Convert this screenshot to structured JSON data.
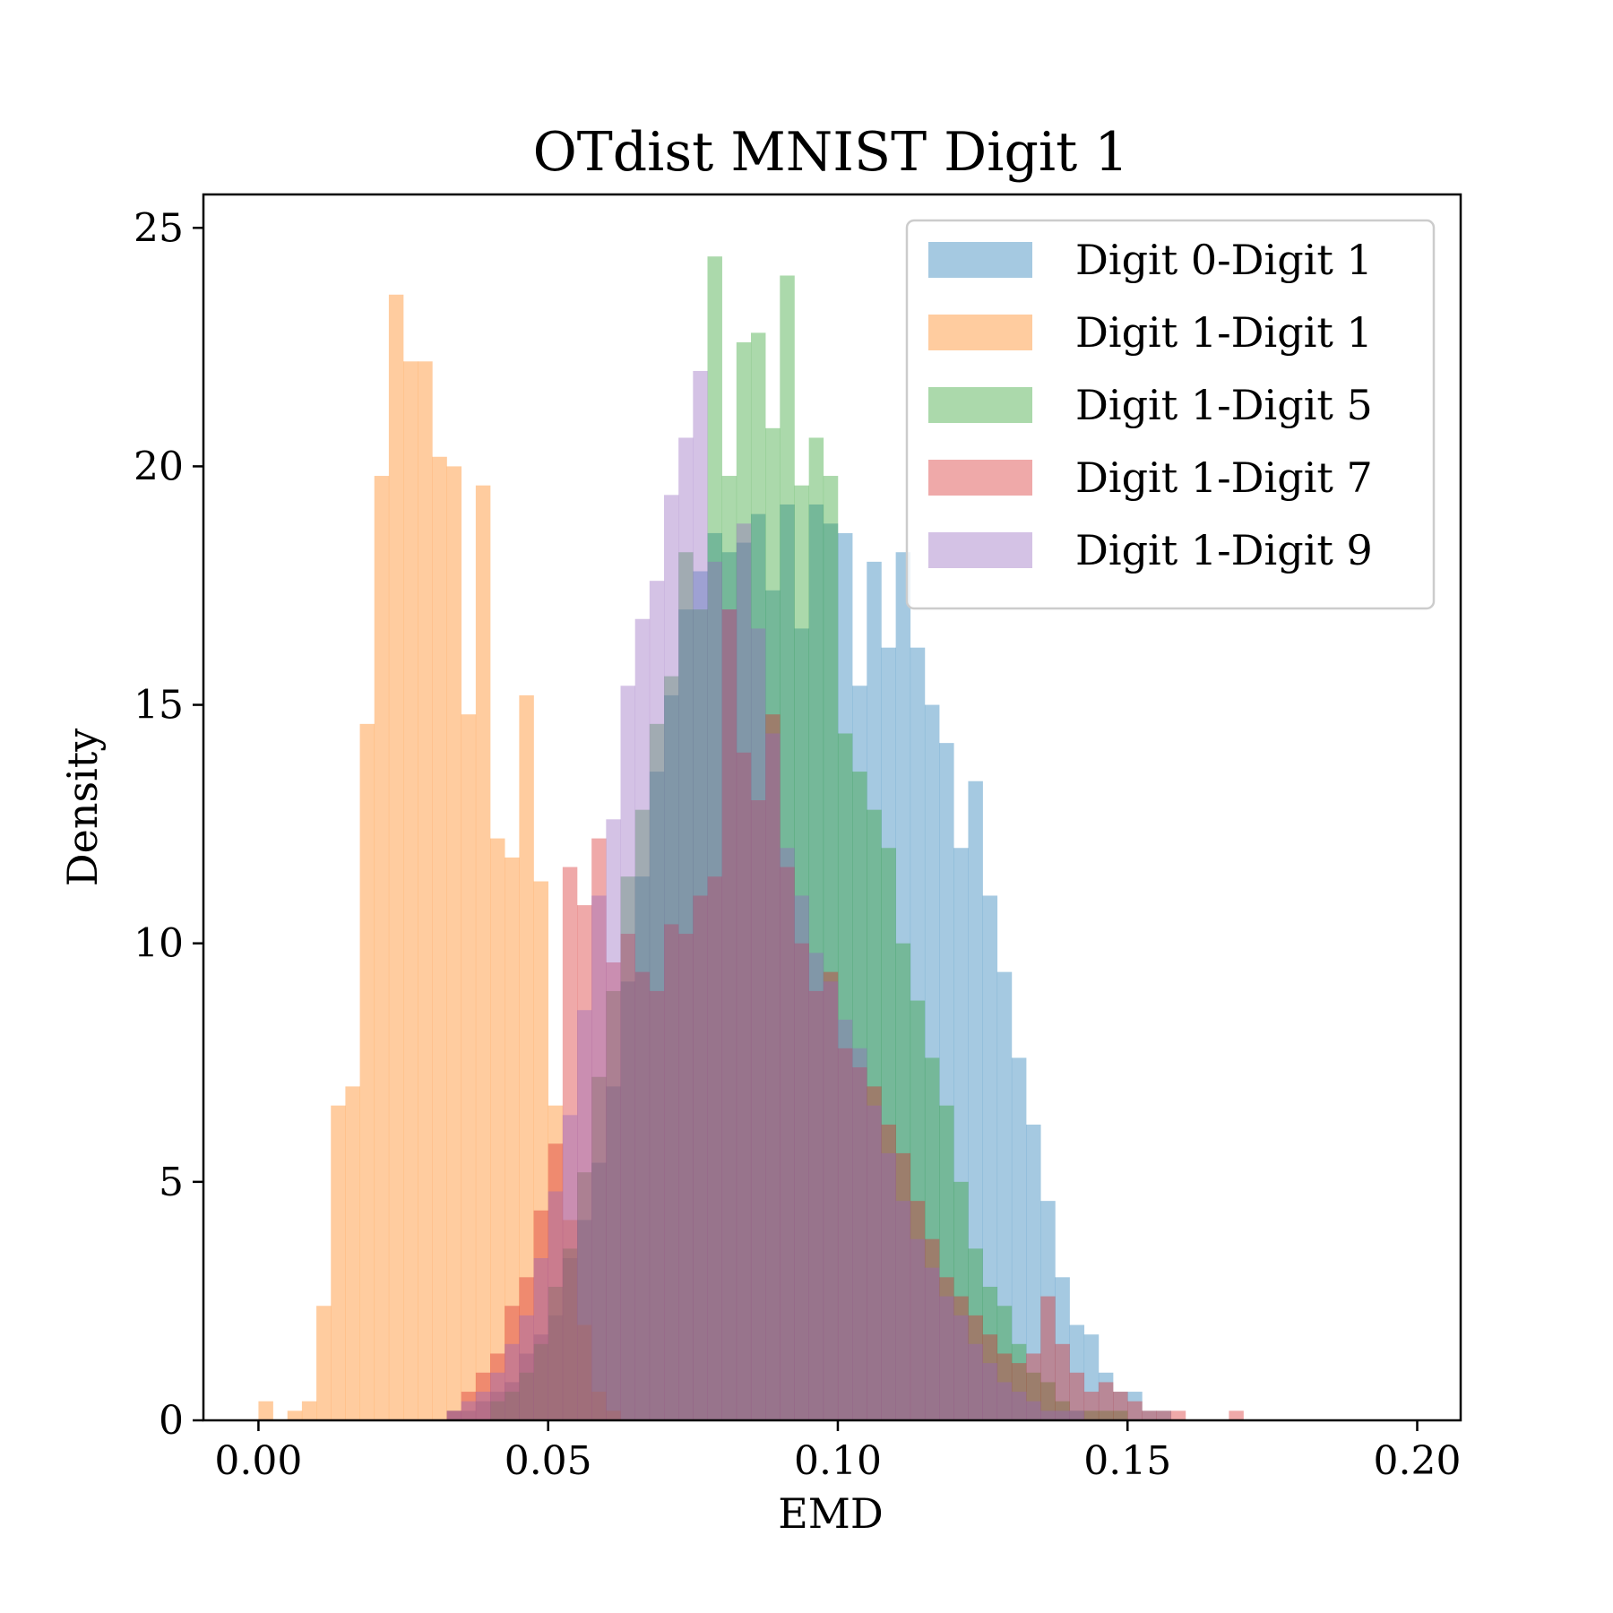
{
  "chart_data": {
    "type": "histogram",
    "title": "OTdist MNIST Digit 1",
    "xlabel": "EMD",
    "ylabel": "Density",
    "xlim": [
      -0.0095,
      0.2075
    ],
    "ylim": [
      0,
      25.7
    ],
    "x_ticks": [
      0.0,
      0.05,
      0.1,
      0.15,
      0.2
    ],
    "x_tick_labels": [
      "0.00",
      "0.05",
      "0.10",
      "0.15",
      "0.20"
    ],
    "y_ticks": [
      0,
      5,
      10,
      15,
      20,
      25
    ],
    "y_tick_labels": [
      "0",
      "5",
      "10",
      "15",
      "20",
      "25"
    ],
    "legend_position": "top-right",
    "opacity": 0.4,
    "bin_width": 0.0025,
    "series": [
      {
        "name": "Digit 0-Digit 1",
        "color": "#1f77b4",
        "bin_start": 0.0325,
        "values": [
          0.2,
          0.2,
          0.4,
          0.6,
          0.8,
          1.4,
          1.8,
          2.2,
          3.4,
          4.2,
          5.4,
          7.0,
          9.2,
          11.4,
          13.6,
          15.2,
          17.0,
          17.8,
          18.6,
          18.2,
          18.4,
          19.0,
          17.4,
          19.2,
          16.6,
          19.2,
          18.8,
          18.6,
          15.4,
          18.0,
          16.2,
          18.2,
          16.2,
          15.0,
          14.2,
          12.0,
          13.4,
          11.0,
          9.4,
          7.6,
          6.2,
          4.6,
          3.0,
          2.0,
          1.8,
          1.0,
          0.6,
          0.6,
          0.2,
          0.2
        ]
      },
      {
        "name": "Digit 1-Digit 1",
        "color": "#ff7f0e",
        "bin_start": 0.0,
        "values": [
          0.4,
          0.0,
          0.2,
          0.4,
          2.4,
          6.6,
          7.0,
          14.6,
          19.8,
          23.6,
          22.2,
          22.2,
          20.2,
          20.0,
          14.8,
          19.6,
          12.2,
          11.8,
          15.2,
          11.3,
          6.6,
          4.2,
          2.0,
          0.6,
          0.2
        ]
      },
      {
        "name": "Digit 1-Digit 5",
        "color": "#2ca02c",
        "bin_start": 0.04,
        "values": [
          0.4,
          0.6,
          1.0,
          1.6,
          2.8,
          3.6,
          5.2,
          7.2,
          9.0,
          11.4,
          12.8,
          14.6,
          15.6,
          18.2,
          17.0,
          24.4,
          19.8,
          22.6,
          22.8,
          20.8,
          24.0,
          19.6,
          20.6,
          19.8,
          14.4,
          13.6,
          12.8,
          12.0,
          10.0,
          8.8,
          7.6,
          6.6,
          5.0,
          3.6,
          2.8,
          2.4,
          1.6,
          1.0,
          0.8,
          0.4,
          0.2,
          0.2,
          0.2,
          0.2
        ]
      },
      {
        "name": "Digit 1-Digit 7",
        "color": "#d62728",
        "bin_start": 0.0325,
        "values": [
          0.2,
          0.6,
          1.0,
          1.4,
          2.4,
          3.0,
          4.4,
          5.8,
          11.6,
          10.8,
          12.2,
          9.6,
          10.2,
          9.4,
          9.0,
          10.4,
          10.2,
          11.0,
          11.4,
          17.0,
          14.0,
          13.0,
          14.8,
          11.6,
          10.0,
          9.0,
          9.4,
          7.8,
          7.4,
          7.0,
          6.2,
          5.6,
          4.6,
          3.8,
          3.0,
          2.6,
          2.2,
          1.8,
          1.4,
          1.2,
          1.4,
          2.6,
          1.6,
          1.0,
          0.6,
          0.8,
          0.6,
          0.4,
          0.2,
          0.2,
          0.2,
          0.0,
          0.0,
          0.0,
          0.2
        ]
      },
      {
        "name": "Digit 1-Digit 9",
        "color": "#9467bd",
        "bin_start": 0.0325,
        "values": [
          0.2,
          0.4,
          0.6,
          1.0,
          1.6,
          2.2,
          3.4,
          4.8,
          6.4,
          8.6,
          11.0,
          12.6,
          15.4,
          16.8,
          17.6,
          19.4,
          20.6,
          22.0,
          18.0,
          17.0,
          18.8,
          16.6,
          14.4,
          12.0,
          11.0,
          9.8,
          9.2,
          8.4,
          7.8,
          6.6,
          5.6,
          4.6,
          3.8,
          3.2,
          2.6,
          2.2,
          1.6,
          1.2,
          0.8,
          0.6,
          0.4,
          0.2,
          0.2,
          0.2
        ]
      }
    ]
  }
}
